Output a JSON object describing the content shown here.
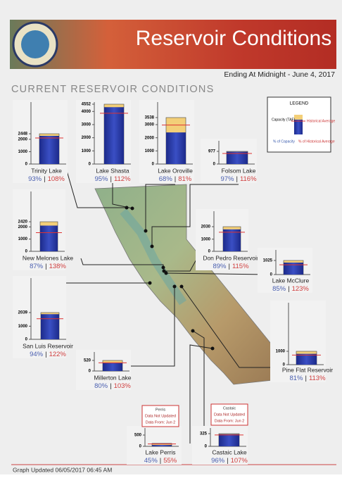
{
  "header": {
    "title": "Reservoir Conditions",
    "date": "Ending At Midnight - June 4, 2017"
  },
  "subtitle": "CURRENT RESERVOIR CONDITIONS",
  "legend": {
    "title": "LEGEND",
    "capacity": "Capacity (TAF)",
    "historical": "Historical Average",
    "pct_capacity": "% of Capacity",
    "pct_average": "% of Historical Average"
  },
  "separator": "|",
  "footer": "Graph Updated 06/05/2017 06:45 AM",
  "reservoirs": [
    {
      "name": "Trinity Lake",
      "ylim": [
        0,
        2448
      ],
      "yticks": [
        0,
        1000,
        2000,
        2448
      ],
      "capacity": 2448,
      "storage": 2277,
      "average": 2108,
      "pct_capacity": 93,
      "pct_capacity_label": "93%",
      "pct_average": 108,
      "pct_average_label": "108%"
    },
    {
      "name": "Lake Shasta",
      "ylim": [
        0,
        4552
      ],
      "yticks": [
        0,
        1000,
        2000,
        3000,
        4000,
        4552
      ],
      "capacity": 4552,
      "storage": 4324,
      "average": 3861,
      "pct_capacity": 95,
      "pct_capacity_label": "95%",
      "pct_average": 112,
      "pct_average_label": "112%"
    },
    {
      "name": "Lake Oroville",
      "ylim": [
        0,
        3538
      ],
      "yticks": [
        0,
        1000,
        2000,
        3000,
        3538
      ],
      "capacity": 3538,
      "storage": 2406,
      "average": 2970,
      "pct_capacity": 68,
      "pct_capacity_label": "68%",
      "pct_average": 81,
      "pct_average_label": "81%"
    },
    {
      "name": "Folsom Lake",
      "ylim": [
        0,
        977
      ],
      "yticks": [
        0,
        977
      ],
      "capacity": 977,
      "storage": 948,
      "average": 817,
      "pct_capacity": 97,
      "pct_capacity_label": "97%",
      "pct_average": 116,
      "pct_average_label": "116%"
    },
    {
      "name": "New Melones Lake",
      "ylim": [
        0,
        2420
      ],
      "yticks": [
        0,
        1000,
        2000,
        2420
      ],
      "capacity": 2420,
      "storage": 2105,
      "average": 1525,
      "pct_capacity": 87,
      "pct_capacity_label": "87%",
      "pct_average": 138,
      "pct_average_label": "138%"
    },
    {
      "name": "Don Pedro Reservoir",
      "ylim": [
        0,
        2030
      ],
      "yticks": [
        0,
        1000,
        2030
      ],
      "capacity": 2030,
      "storage": 1807,
      "average": 1571,
      "pct_capacity": 89,
      "pct_capacity_label": "89%",
      "pct_average": 115,
      "pct_average_label": "115%"
    },
    {
      "name": "Lake McClure",
      "ylim": [
        0,
        1025
      ],
      "yticks": [
        0,
        1025
      ],
      "capacity": 1025,
      "storage": 871,
      "average": 708,
      "pct_capacity": 85,
      "pct_capacity_label": "85%",
      "pct_average": 123,
      "pct_average_label": "123%"
    },
    {
      "name": "San Luis Reservoir",
      "ylim": [
        0,
        2039
      ],
      "yticks": [
        0,
        1000,
        2039
      ],
      "capacity": 2039,
      "storage": 1917,
      "average": 1571,
      "pct_capacity": 94,
      "pct_capacity_label": "94%",
      "pct_average": 122,
      "pct_average_label": "122%"
    },
    {
      "name": "Millerton Lake",
      "ylim": [
        0,
        520
      ],
      "yticks": [
        0,
        520
      ],
      "capacity": 520,
      "storage": 416,
      "average": 404,
      "pct_capacity": 80,
      "pct_capacity_label": "80%",
      "pct_average": 103,
      "pct_average_label": "103%"
    },
    {
      "name": "Pine Flat Reservoir",
      "ylim": [
        0,
        1000
      ],
      "yticks": [
        0,
        1000
      ],
      "capacity": 1000,
      "storage": 810,
      "average": 717,
      "pct_capacity": 81,
      "pct_capacity_label": "81%",
      "pct_average": 113,
      "pct_average_label": "113%"
    },
    {
      "name": "Lake Perris",
      "ylim": [
        0,
        500
      ],
      "yticks": [
        0,
        500
      ],
      "capacity": 131,
      "storage": 59,
      "average": 107,
      "pct_capacity": 45,
      "pct_capacity_label": "45%",
      "pct_average": 55,
      "pct_average_label": "55%",
      "note": [
        "Perris",
        "Data Not Updated",
        "Data From: Jun 2"
      ]
    },
    {
      "name": "Castaic Lake",
      "ylim": [
        0,
        325
      ],
      "yticks": [
        0,
        325
      ],
      "capacity": 325,
      "storage": 312,
      "average": 292,
      "pct_capacity": 96,
      "pct_capacity_label": "96%",
      "pct_average": 107,
      "pct_average_label": "107%",
      "note": [
        "Castaic",
        "Data Not Updated",
        "Data From: Jun 2"
      ]
    }
  ]
}
